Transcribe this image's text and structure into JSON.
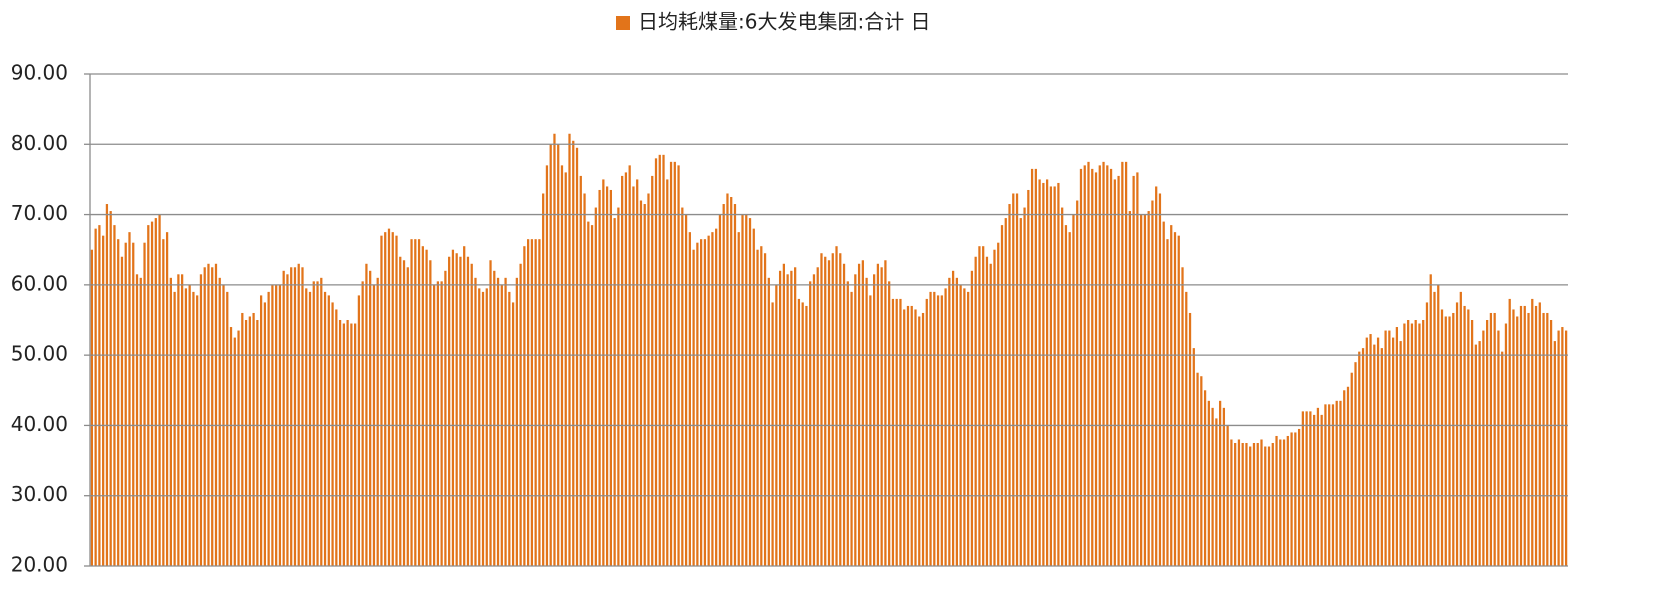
{
  "chart_data": {
    "type": "bar",
    "legend": "日均耗煤量:6大发电集团:合计 日",
    "color": "#e2741a",
    "grid": true,
    "ylim": [
      20,
      90
    ],
    "yticks": [
      {
        "value": 20,
        "label": "20.00"
      },
      {
        "value": 30,
        "label": "30.00"
      },
      {
        "value": 40,
        "label": "40.00"
      },
      {
        "value": 50,
        "label": "50.00"
      },
      {
        "value": 60,
        "label": "60.00"
      },
      {
        "value": 70,
        "label": "70.00"
      },
      {
        "value": 80,
        "label": "80.00"
      },
      {
        "value": 90,
        "label": "90.00"
      }
    ],
    "values": [
      65,
      68,
      68.5,
      67,
      71.5,
      70.5,
      68.5,
      66.5,
      64,
      66,
      67.5,
      66,
      61.5,
      61,
      66,
      68.5,
      69,
      69.5,
      70,
      66.5,
      67.5,
      61,
      59,
      61.5,
      61.5,
      59.5,
      60,
      59,
      58.5,
      61.5,
      62.5,
      63,
      62.5,
      63,
      61,
      60,
      59,
      54,
      52.5,
      53.5,
      56,
      55,
      55.5,
      56,
      55,
      58.5,
      57.5,
      59,
      60,
      60,
      60,
      62,
      61.5,
      62.5,
      62.5,
      63,
      62.5,
      59.5,
      59,
      60.5,
      60.5,
      61,
      59,
      58.5,
      57.5,
      56.5,
      55,
      54.5,
      55,
      54.5,
      54.5,
      58.5,
      60.5,
      63,
      62,
      60,
      61,
      67,
      67.5,
      68,
      67.5,
      67,
      64,
      63.5,
      62.5,
      66.5,
      66.5,
      66.5,
      65.5,
      65,
      63.5,
      60,
      60.5,
      60.5,
      62,
      64,
      65,
      64.5,
      64,
      65.5,
      64,
      63,
      61,
      59.5,
      59,
      59.5,
      63.5,
      62,
      61,
      60,
      61,
      59,
      57.5,
      61,
      63,
      65.5,
      66.5,
      66.5,
      66.5,
      66.5,
      73,
      77,
      80,
      81.5,
      80,
      77,
      76,
      81.5,
      80.5,
      79.5,
      75.5,
      73,
      69,
      68.5,
      71,
      73.5,
      75,
      74,
      73.5,
      69.5,
      71,
      75.5,
      76,
      77,
      74,
      75,
      72,
      71.5,
      73,
      75.5,
      78,
      78.5,
      78.5,
      75,
      77.5,
      77.5,
      77,
      71,
      70,
      67.5,
      65,
      66,
      66.5,
      66.5,
      67,
      67.5,
      68,
      70,
      71.5,
      73,
      72.5,
      71.5,
      67.5,
      70,
      70,
      69.5,
      68,
      65,
      65.5,
      64.5,
      61,
      57.5,
      60,
      62,
      63,
      61.5,
      62,
      62.5,
      58,
      57.5,
      57,
      60.5,
      61.5,
      62.5,
      64.5,
      64,
      63.5,
      64.5,
      65.5,
      64.5,
      63,
      60.5,
      59,
      61.5,
      63,
      63.5,
      61,
      58.5,
      61.5,
      63,
      62.5,
      63.5,
      60.5,
      58,
      58,
      58,
      56.5,
      57,
      57,
      56.5,
      55.5,
      56,
      58,
      59,
      59,
      58.5,
      58.5,
      59.5,
      61,
      62,
      61,
      60,
      59.5,
      59,
      62,
      64,
      65.5,
      65.5,
      64,
      63,
      65,
      66,
      68.5,
      69.5,
      71.5,
      73,
      73,
      69.5,
      71,
      73.5,
      76.5,
      76.5,
      75,
      74.5,
      75,
      74,
      74,
      74.5,
      71,
      68.5,
      67.5,
      70,
      72,
      76.5,
      77,
      77.5,
      76.5,
      76,
      77,
      77.5,
      77,
      76.5,
      75,
      75.5,
      77.5,
      77.5,
      70.5,
      75.5,
      76,
      70,
      70,
      70.5,
      72,
      74,
      73,
      69,
      66.5,
      68.5,
      67.5,
      67,
      62.5,
      59,
      56,
      51,
      47.5,
      47,
      45,
      43.5,
      42.5,
      41,
      43.5,
      42.5,
      40,
      38,
      37.5,
      38,
      37.5,
      37.5,
      37,
      37.5,
      37.5,
      38,
      37,
      37,
      37.5,
      38.5,
      38,
      38,
      38.5,
      39,
      39,
      39.5,
      42,
      42,
      42,
      41.5,
      42.5,
      41.5,
      43,
      43,
      43,
      43.5,
      43.5,
      45,
      45.5,
      47.5,
      49,
      50.5,
      51,
      52.5,
      53,
      51.5,
      52.5,
      51,
      53.5,
      53.5,
      52.5,
      54,
      52,
      54.5,
      55,
      54.5,
      55,
      54.5,
      55,
      57.5,
      61.5,
      59,
      60,
      56.5,
      55.5,
      55.5,
      56,
      57.5,
      59,
      57,
      56.5,
      55,
      51.5,
      52,
      53.5,
      55,
      56,
      56,
      53.5,
      50.5,
      54.5,
      58,
      56.5,
      55.5,
      57,
      57,
      56,
      58,
      57,
      57.5,
      56,
      56,
      55,
      52,
      53.5,
      54,
      53.5
    ]
  }
}
